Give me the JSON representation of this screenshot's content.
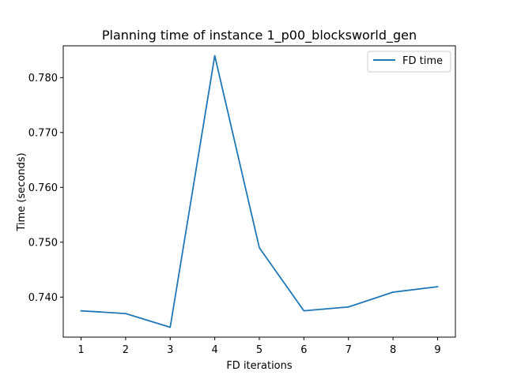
{
  "chart_data": {
    "type": "line",
    "title": "Planning time of instance 1_p00_blocksworld_gen",
    "xlabel": "FD iterations",
    "ylabel": "Time (seconds)",
    "x": [
      1,
      2,
      3,
      4,
      5,
      6,
      7,
      8,
      9
    ],
    "xticks": [
      "1",
      "2",
      "3",
      "4",
      "5",
      "6",
      "7",
      "8",
      "9"
    ],
    "xlim": [
      0.6,
      9.4
    ],
    "ylim": [
      0.7327,
      0.7858
    ],
    "yticks": [
      "0.740",
      "0.750",
      "0.760",
      "0.770",
      "0.780"
    ],
    "ytick_values": [
      0.74,
      0.75,
      0.76,
      0.77,
      0.78
    ],
    "grid": false,
    "legend": "upper right",
    "series": [
      {
        "name": "FD time",
        "color": "#1f77b4",
        "values": [
          0.7375,
          0.737,
          0.7345,
          0.784,
          0.749,
          0.7375,
          0.7382,
          0.7409,
          0.7419
        ]
      }
    ]
  }
}
